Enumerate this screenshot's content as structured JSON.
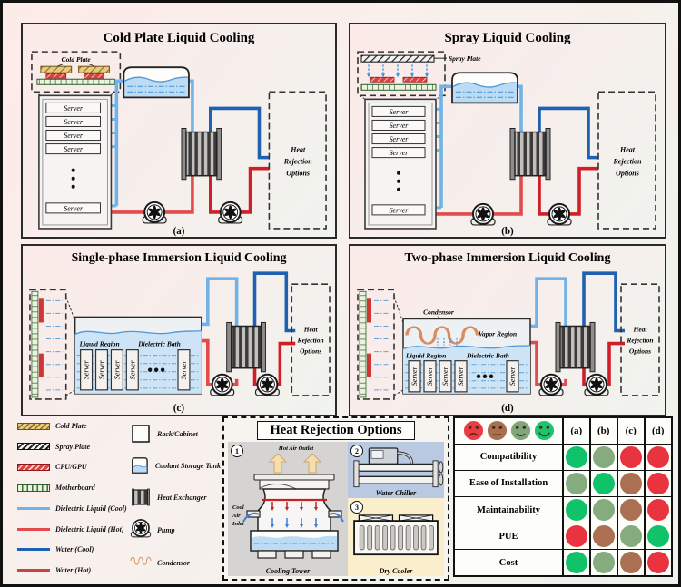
{
  "panels": {
    "a": {
      "title": "Cold Plate Liquid Cooling",
      "caption": "(a)",
      "component_label": "Cold Plate",
      "server_label": "Server",
      "heat_rejection_box": {
        "line1": "Heat",
        "line2": "Rejection",
        "line3": "Options"
      }
    },
    "b": {
      "title": "Spray Liquid Cooling",
      "caption": "(b)",
      "component_label": "Spray Plate",
      "server_label": "Server",
      "heat_rejection_box": {
        "line1": "Heat",
        "line2": "Rejection",
        "line3": "Options"
      }
    },
    "c": {
      "title": "Single-phase Immersion Liquid Cooling",
      "caption": "(c)",
      "server_label": "Server",
      "liquid_region": "Liquid Region",
      "dielectric_bath": "Dielectric Bath",
      "heat_rejection_box": {
        "line1": "Heat",
        "line2": "Rejection",
        "line3": "Options"
      }
    },
    "d": {
      "title": "Two-phase Immersion Liquid Cooling",
      "caption": "(d)",
      "server_label": "Server",
      "condensor": "Condensor",
      "vapor_region": "Vapor Region",
      "liquid_region": "Liquid Region",
      "dielectric_bath": "Dielectric Bath",
      "heat_rejection_box": {
        "line1": "Heat",
        "line2": "Rejection",
        "line3": "Options"
      }
    }
  },
  "legend": {
    "left_items": [
      {
        "name": "cold-plate",
        "label": "Cold Plate"
      },
      {
        "name": "spray-plate",
        "label": "Spray Plate"
      },
      {
        "name": "cpu-gpu",
        "label": "CPU/GPU"
      },
      {
        "name": "motherboard",
        "label": "Motherboard"
      },
      {
        "name": "dielectric-liquid-cool",
        "label": "Dielectric Liquid (Cool)"
      },
      {
        "name": "dielectric-liquid-hot",
        "label": "Dielectric Liquid (Hot)"
      },
      {
        "name": "water-cool",
        "label": "Water (Cool)"
      },
      {
        "name": "water-hot",
        "label": "Water (Hot)"
      }
    ],
    "right_items": [
      {
        "name": "rack-cabinet",
        "label": "Rack/Cabinet"
      },
      {
        "name": "coolant-storage-tank",
        "label": "Coolant Storage Tank"
      },
      {
        "name": "heat-exchanger",
        "label": "Heat Exchanger"
      },
      {
        "name": "pump",
        "label": "Pump"
      },
      {
        "name": "condensor",
        "label": "Condensor"
      }
    ]
  },
  "heat_rejection_options": {
    "title": "Heat Rejection Options",
    "options": [
      {
        "number": "1",
        "label": "Cooling Tower",
        "annotations": {
          "top": "Hot Air Outlet",
          "left": [
            "Cool",
            "Air",
            "Inlet"
          ]
        }
      },
      {
        "number": "2",
        "label": "Water Chiller"
      },
      {
        "number": "3",
        "label": "Dry Cooler"
      }
    ]
  },
  "comparison_table": {
    "columns": [
      "(a)",
      "(b)",
      "(c)",
      "(d)"
    ],
    "smiley_scale": [
      {
        "rating": "bad",
        "color": "#ec3b45"
      },
      {
        "rating": "poor",
        "color": "#aa6e50"
      },
      {
        "rating": "fair",
        "color": "#7ea87a"
      },
      {
        "rating": "good",
        "color": "#1ec36d"
      }
    ],
    "rating_colors": {
      "bad": "#e93440",
      "poor": "#ab7051",
      "fair": "#85ab7e",
      "good": "#10c269"
    },
    "rows": [
      {
        "label": "Compatibility",
        "ratings": [
          "good",
          "fair",
          "bad",
          "bad"
        ]
      },
      {
        "label": "Ease of Installation",
        "ratings": [
          "fair",
          "good",
          "poor",
          "bad"
        ]
      },
      {
        "label": "Maintainability",
        "ratings": [
          "good",
          "fair",
          "poor",
          "bad"
        ]
      },
      {
        "label": "PUE",
        "ratings": [
          "bad",
          "poor",
          "fair",
          "good"
        ]
      },
      {
        "label": "Cost",
        "ratings": [
          "good",
          "fair",
          "poor",
          "bad"
        ]
      }
    ]
  },
  "colors": {
    "dielectric_cool": "#6fb3e8",
    "dielectric_hot": "#e14b4b",
    "water_cool": "#2060b0",
    "water_hot": "#d01f28",
    "background_pink": "#fcebe9",
    "background_green": "#edf3ec"
  }
}
